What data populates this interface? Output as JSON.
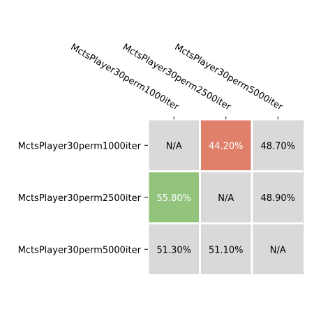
{
  "chart_data": {
    "type": "heatmap",
    "title": "",
    "xlabel": "",
    "ylabel": "",
    "x_categories": [
      "MctsPlayer30perm1000iter",
      "MctsPlayer30perm2500iter",
      "MctsPlayer30perm5000iter"
    ],
    "y_categories": [
      "MctsPlayer30perm1000iter",
      "MctsPlayer30perm2500iter",
      "MctsPlayer30perm5000iter"
    ],
    "x_tick_position": "top",
    "cells": [
      [
        "N/A",
        "44.20%",
        "48.70%"
      ],
      [
        "55.80%",
        "N/A",
        "48.90%"
      ],
      [
        "51.30%",
        "51.10%",
        "N/A"
      ]
    ],
    "colors": {
      "neutral": "#d9d9d9",
      "low": "#e07f6a",
      "high": "#93c47d",
      "text_dark": "#000000",
      "text_light": "#ffffff"
    },
    "cell_styles": [
      [
        "neutral",
        "low",
        "neutral"
      ],
      [
        "high",
        "neutral",
        "neutral"
      ],
      [
        "neutral",
        "neutral",
        "neutral"
      ]
    ]
  }
}
